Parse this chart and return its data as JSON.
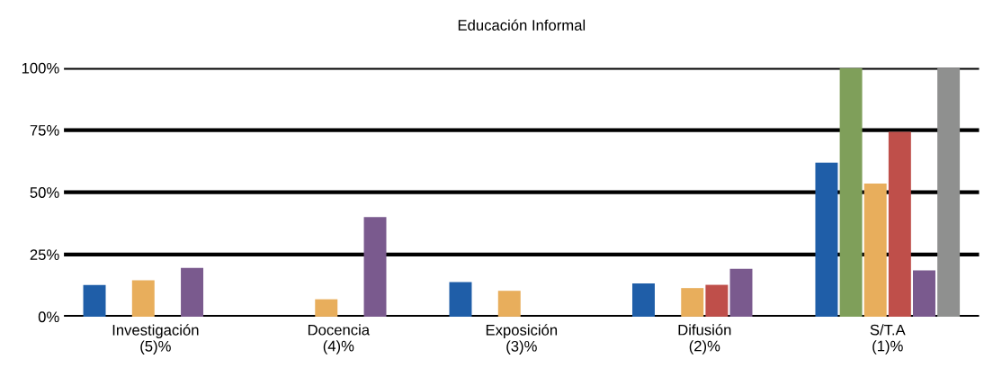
{
  "chart_data": {
    "type": "bar",
    "title": "Educación Informal",
    "categories": [
      "Investigación\n(5)%",
      "Docencia\n(4)%",
      "Exposición\n(3)%",
      "Difusión\n(2)%",
      "S/T.A\n(1)%"
    ],
    "series": [
      {
        "color": "#1f5ea8",
        "values": [
          12.7,
          null,
          13.9,
          13.4,
          61.9
        ]
      },
      {
        "color": "#7f9f5a",
        "values": [
          null,
          null,
          null,
          null,
          100
        ]
      },
      {
        "color": "#e8ae5c",
        "values": [
          14.6,
          7.0,
          10.4,
          11.5,
          53.5
        ]
      },
      {
        "color": "#bf4f4a",
        "values": [
          null,
          null,
          null,
          12.8,
          74.3
        ]
      },
      {
        "color": "#7a5a8e",
        "values": [
          19.6,
          40,
          null,
          19.2,
          18.6
        ]
      },
      {
        "color": "#8f908f",
        "values": [
          null,
          null,
          null,
          null,
          100
        ]
      }
    ],
    "ylim": [
      0,
      100
    ],
    "yticks": [
      {
        "value": 0,
        "label": "0%"
      },
      {
        "value": 25,
        "label": "25%"
      },
      {
        "value": 50,
        "label": "50%"
      },
      {
        "value": 75,
        "label": "75%"
      },
      {
        "value": 100,
        "label": "100%"
      }
    ],
    "grid": "y"
  }
}
